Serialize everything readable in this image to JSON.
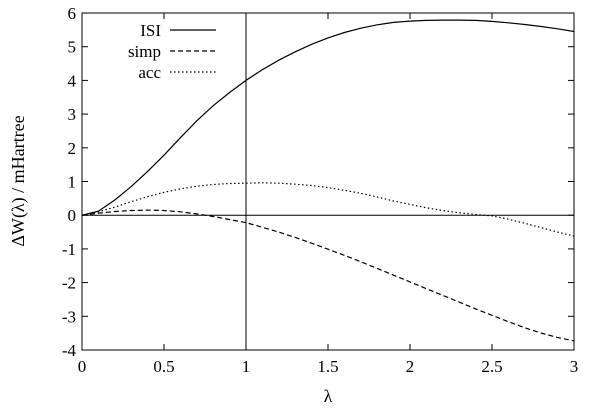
{
  "chart_data": {
    "type": "line",
    "xlabel": "λ",
    "ylabel": "ΔW(λ) / mHartree",
    "xlim": [
      0,
      3
    ],
    "ylim": [
      -4,
      6
    ],
    "xticks": [
      "0",
      "0.5",
      "1",
      "1.5",
      "2",
      "2.5",
      "3"
    ],
    "yticks": [
      "-4",
      "-3",
      "-2",
      "-1",
      "0",
      "1",
      "2",
      "3",
      "4",
      "5",
      "6"
    ],
    "grid": false,
    "legend_position": "top-left",
    "reference_lines": {
      "horizontal_y": 0,
      "vertical_x": 1
    },
    "series": [
      {
        "name": "ISI",
        "line_style": "solid",
        "x": [
          0,
          0.1,
          0.2,
          0.3,
          0.4,
          0.5,
          0.6,
          0.7,
          0.8,
          0.9,
          1.0,
          1.1,
          1.2,
          1.3,
          1.4,
          1.5,
          1.6,
          1.7,
          1.8,
          1.9,
          2.0,
          2.1,
          2.2,
          2.3,
          2.4,
          2.5,
          2.6,
          2.7,
          2.8,
          2.9,
          3.0
        ],
        "y": [
          0,
          0.12,
          0.45,
          0.85,
          1.3,
          1.78,
          2.3,
          2.8,
          3.25,
          3.64,
          4.0,
          4.32,
          4.6,
          4.85,
          5.07,
          5.26,
          5.42,
          5.55,
          5.65,
          5.72,
          5.76,
          5.78,
          5.79,
          5.79,
          5.78,
          5.75,
          5.71,
          5.66,
          5.6,
          5.53,
          5.45
        ]
      },
      {
        "name": "simp",
        "line_style": "dashed",
        "x": [
          0,
          0.1,
          0.2,
          0.3,
          0.4,
          0.5,
          0.6,
          0.7,
          0.8,
          0.9,
          1.0,
          1.1,
          1.2,
          1.3,
          1.4,
          1.5,
          1.6,
          1.7,
          1.8,
          1.9,
          2.0,
          2.1,
          2.2,
          2.3,
          2.4,
          2.5,
          2.6,
          2.7,
          2.8,
          2.9,
          3.0
        ],
        "y": [
          0,
          0.06,
          0.11,
          0.14,
          0.15,
          0.14,
          0.1,
          0.04,
          -0.04,
          -0.13,
          -0.22,
          -0.36,
          -0.5,
          -0.66,
          -0.83,
          -1.01,
          -1.19,
          -1.38,
          -1.58,
          -1.78,
          -1.98,
          -2.18,
          -2.38,
          -2.58,
          -2.78,
          -2.97,
          -3.16,
          -3.34,
          -3.5,
          -3.63,
          -3.73
        ]
      },
      {
        "name": "acc",
        "line_style": "dotted",
        "x": [
          0,
          0.1,
          0.2,
          0.3,
          0.4,
          0.5,
          0.6,
          0.7,
          0.8,
          0.9,
          1.0,
          1.1,
          1.2,
          1.3,
          1.4,
          1.5,
          1.6,
          1.7,
          1.8,
          1.9,
          2.0,
          2.1,
          2.2,
          2.3,
          2.4,
          2.5,
          2.6,
          2.7,
          2.8,
          2.9,
          3.0
        ],
        "y": [
          0,
          0.1,
          0.24,
          0.4,
          0.55,
          0.68,
          0.78,
          0.86,
          0.91,
          0.94,
          0.95,
          0.96,
          0.95,
          0.92,
          0.88,
          0.82,
          0.74,
          0.65,
          0.54,
          0.42,
          0.32,
          0.22,
          0.14,
          0.07,
          0.02,
          -0.02,
          -0.12,
          -0.24,
          -0.37,
          -0.5,
          -0.62
        ]
      }
    ]
  }
}
